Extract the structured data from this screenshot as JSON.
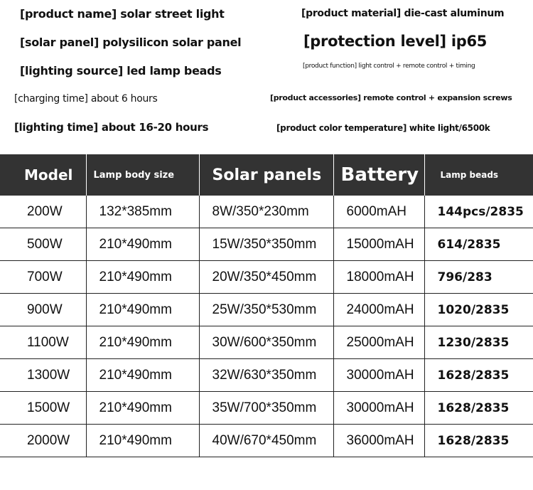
{
  "specs": {
    "product_name": "[product name] solar street light",
    "product_material": "[product material] die-cast aluminum",
    "solar_panel": "[solar panel] polysilicon solar panel",
    "protection_level": "[protection level] ip65",
    "lighting_source": "[lighting source] led lamp beads",
    "product_function": "[product function] light control + remote control + timing",
    "charging_time": "[charging time] about 6 hours",
    "product_accessories": "[product accessories] remote control + expansion screws",
    "lighting_time": "[lighting time] about 16-20 hours",
    "color_temperature": "[product color temperature] white light/6500k"
  },
  "table": {
    "headers": [
      "Model",
      "Lamp body size",
      "Solar panels",
      "Battery",
      "Lamp beads"
    ],
    "rows": [
      [
        "200W",
        "132*385mm",
        "8W/350*230mm",
        "6000mAH",
        "144pcs/2835"
      ],
      [
        "500W",
        "210*490mm",
        "15W/350*350mm",
        "15000mAH",
        "614/2835"
      ],
      [
        "700W",
        "210*490mm",
        "20W/350*450mm",
        "18000mAH",
        "796/283"
      ],
      [
        "900W",
        "210*490mm",
        "25W/350*530mm",
        "24000mAH",
        "1020/2835"
      ],
      [
        "1100W",
        "210*490mm",
        "30W/600*350mm",
        "25000mAH",
        "1230/2835"
      ],
      [
        "1300W",
        "210*490mm",
        "32W/630*350mm",
        "30000mAH",
        "1628/2835"
      ],
      [
        "1500W",
        "210*490mm",
        "35W/700*350mm",
        "30000mAH",
        "1628/2835"
      ],
      [
        "2000W",
        "210*490mm",
        "40W/670*450mm",
        "36000mAH",
        "1628/2835"
      ]
    ]
  }
}
